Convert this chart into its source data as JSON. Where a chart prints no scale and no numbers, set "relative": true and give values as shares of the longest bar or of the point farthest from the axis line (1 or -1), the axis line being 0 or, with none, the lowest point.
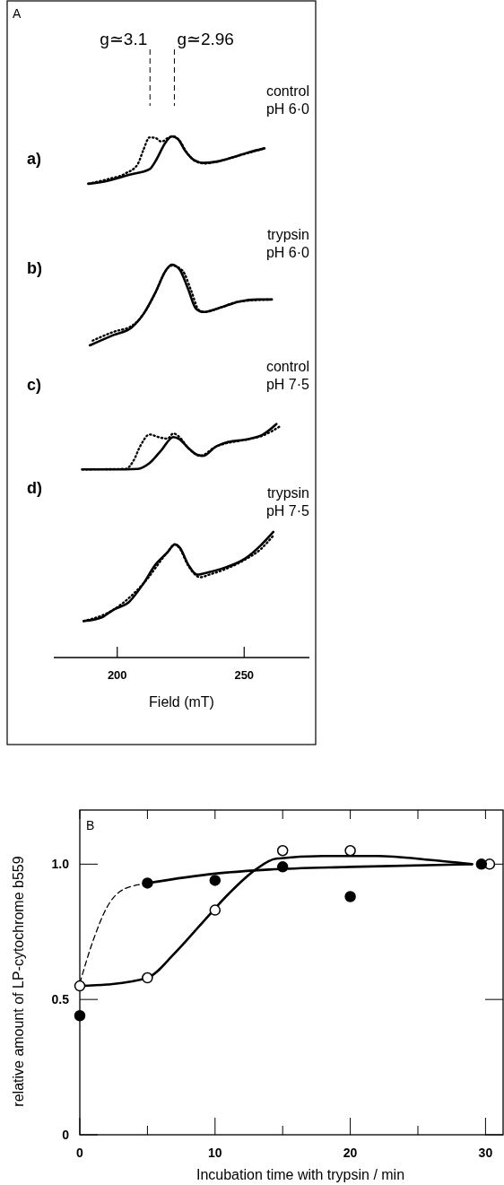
{
  "chart_data": [
    {
      "type": "line",
      "relative": true,
      "xlim": [
        175,
        275.7
      ],
      "xticks": [
        200,
        250
      ],
      "xlabel": "Field (mT)",
      "annotations": [
        "A",
        "a)",
        "control",
        "pH 6·0",
        "b)",
        "trypsin",
        "pH 6·0",
        "c)",
        "control",
        "pH 7·5",
        "d)",
        "trypsin",
        "pH 7·5"
      ],
      "ref_lines": [
        {
          "axis": "x",
          "value": 212.9,
          "label": "g≃3.1",
          "line_style": "dashed"
        },
        {
          "axis": "x",
          "value": 222.5,
          "label": "g≃2.96",
          "line_style": "dashed"
        }
      ],
      "series": [
        {
          "color": "#000000",
          "line_style": "solid",
          "x": [
            188.6,
            195.6,
            204.5,
            212.7,
            215.6,
            218.6,
            221.5,
            223.9,
            226.8,
            230.4,
            233.9,
            239.8,
            245.7,
            251.6,
            258
          ],
          "values": [
            0.909,
            0.914,
            0.926,
            0.937,
            0.957,
            0.985,
            1.0,
            0.995,
            0.972,
            0.954,
            0.949,
            0.952,
            0.96,
            0.969,
            0.977
          ]
        },
        {
          "color": "#000000",
          "line_style": "dotted",
          "x": [
            188.6,
            195.6,
            203.3,
            208,
            210.3,
            212.7,
            215,
            217.4,
            220.3,
            222.1,
            224.5,
            227.4,
            230.9,
            234.5,
            239.8,
            245.7,
            258
          ],
          "values": [
            0.909,
            0.917,
            0.929,
            0.946,
            0.974,
            0.998,
            0.997,
            0.99,
            0.998,
            1.0,
            0.992,
            0.969,
            0.952,
            0.948,
            0.952,
            0.96,
            0.977
          ]
        },
        {
          "color": "#000000",
          "line_style": "solid",
          "x": [
            189.2,
            198.6,
            205.6,
            210.3,
            215,
            219.2,
            221.5,
            224.5,
            228,
            230.9,
            233.9,
            239.8,
            248,
            255.1,
            260.9
          ],
          "values": [
            0.599,
            0.619,
            0.633,
            0.659,
            0.7,
            0.743,
            0.754,
            0.745,
            0.706,
            0.67,
            0.663,
            0.67,
            0.683,
            0.687,
            0.687
          ]
        },
        {
          "color": "#000000",
          "line_style": "dotted",
          "x": [
            190.3,
            198.6,
            205.6,
            210.3,
            215,
            219.2,
            221.5,
            225.6,
            229.2,
            232.1,
            234.5,
            239.8,
            248,
            260.9
          ],
          "values": [
            0.608,
            0.625,
            0.636,
            0.659,
            0.7,
            0.743,
            0.752,
            0.743,
            0.703,
            0.667,
            0.663,
            0.67,
            0.683,
            0.687
          ]
        },
        {
          "color": "#000000",
          "line_style": "solid",
          "x": [
            186.2,
            198.6,
            208,
            212.7,
            217.4,
            222.1,
            224.5,
            228,
            231.5,
            233.9,
            238.6,
            243.3,
            251.6,
            257.4,
            262.7
          ],
          "values": [
            0.361,
            0.361,
            0.362,
            0.373,
            0.398,
            0.423,
            0.419,
            0.402,
            0.389,
            0.387,
            0.404,
            0.413,
            0.419,
            0.428,
            0.448
          ]
        },
        {
          "color": "#000000",
          "line_style": "dotted",
          "x": [
            186.2,
            203.3,
            206.2,
            209.2,
            212.7,
            216.2,
            219.8,
            222.1,
            224.5,
            228,
            232.7,
            238.6,
            251.6,
            257.4,
            263.9
          ],
          "values": [
            0.361,
            0.362,
            0.376,
            0.407,
            0.428,
            0.423,
            0.42,
            0.43,
            0.423,
            0.402,
            0.387,
            0.404,
            0.419,
            0.426,
            0.443
          ]
        },
        {
          "color": "#000000",
          "line_style": "solid",
          "x": [
            186.8,
            193.9,
            198.6,
            204.5,
            210.3,
            215,
            219.8,
            222.7,
            224.5,
            228,
            231.5,
            236.2,
            243.3,
            250.4,
            256.3,
            261.5
          ],
          "values": [
            0.07,
            0.077,
            0.092,
            0.106,
            0.142,
            0.178,
            0.202,
            0.217,
            0.212,
            0.178,
            0.159,
            0.164,
            0.174,
            0.19,
            0.214,
            0.241
          ]
        },
        {
          "color": "#000000",
          "line_style": "dotted",
          "x": [
            186.8,
            198.6,
            210.3,
            219.8,
            222.7,
            224.5,
            228,
            232.7,
            236.2,
            243.3,
            250.4,
            256.3,
            261.5
          ],
          "values": [
            0.07,
            0.092,
            0.142,
            0.202,
            0.217,
            0.21,
            0.176,
            0.154,
            0.159,
            0.171,
            0.188,
            0.207,
            0.234
          ]
        }
      ]
    },
    {
      "type": "scatter",
      "xlabel": "Incubation time with trypsin / min",
      "ylabel": "relative amount of LP-cytochrome b559",
      "annotations": [
        "B"
      ],
      "xlim": [
        0,
        31.3
      ],
      "ylim": [
        0,
        1.2
      ],
      "xticks": [
        0,
        {
          "value": 5,
          "label": null
        },
        10,
        {
          "value": 15,
          "label": null
        },
        20,
        {
          "value": 25,
          "label": null
        },
        30
      ],
      "yticks": [
        0,
        0.5,
        {
          "value": 1,
          "label": "1.0"
        }
      ],
      "marker": "circle",
      "series": [
        {
          "type": "line",
          "color": "#000000",
          "line_style": "solid",
          "marker": "none",
          "x": [
            0,
            2,
            5,
            7,
            9,
            11,
            13,
            14.5,
            18,
            22,
            26,
            29
          ],
          "values": [
            0.55,
            0.555,
            0.58,
            0.67,
            0.78,
            0.89,
            0.98,
            1.02,
            1.03,
            1.03,
            1.015,
            1.0
          ]
        },
        {
          "type": "line",
          "color": "#000000",
          "line_style": "dashed",
          "marker": "none",
          "x": [
            0,
            1,
            2,
            3,
            4.5
          ],
          "values": [
            0.56,
            0.72,
            0.84,
            0.9,
            0.925
          ]
        },
        {
          "type": "line",
          "color": "#000000",
          "line_style": "solid",
          "marker": "none",
          "x": [
            5,
            10,
            14,
            20,
            29
          ],
          "values": [
            0.93,
            0.965,
            0.98,
            0.99,
            1.0
          ]
        },
        {
          "color": "#ffffff",
          "x": [
            0,
            5,
            10,
            15,
            20,
            30.3
          ],
          "values": [
            0.55,
            0.58,
            0.83,
            1.05,
            1.05,
            1.0
          ]
        },
        {
          "color": "#000000",
          "x": [
            0,
            5,
            10,
            15,
            20,
            29.7
          ],
          "values": [
            0.44,
            0.93,
            0.94,
            0.99,
            0.88,
            1.0
          ]
        }
      ]
    }
  ]
}
